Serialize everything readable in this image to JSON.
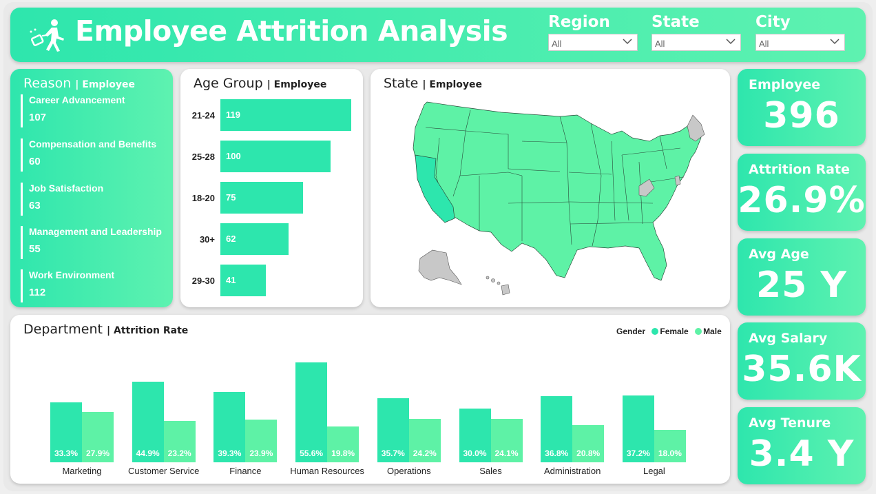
{
  "header": {
    "title": "Employee Attrition Analysis",
    "filters": [
      {
        "label": "Region",
        "value": "All"
      },
      {
        "label": "State",
        "value": "All"
      },
      {
        "label": "City",
        "value": "All"
      }
    ]
  },
  "reason": {
    "title": "Reason",
    "subtitle": "| Employee",
    "items": [
      {
        "label": "Career Advancement",
        "value": "107"
      },
      {
        "label": "Compensation and Benefits",
        "value": "60"
      },
      {
        "label": "Job Satisfaction",
        "value": "63"
      },
      {
        "label": "Management and Leadership",
        "value": "55"
      },
      {
        "label": "Work Environment",
        "value": "112"
      }
    ]
  },
  "state_map": {
    "title": "State",
    "subtitle": "| Employee"
  },
  "kpis": [
    {
      "label": "Employee",
      "value": "396"
    },
    {
      "label": "Attrition Rate",
      "value": "26.9%"
    },
    {
      "label": "Avg Age",
      "value": "25 Y"
    },
    {
      "label": "Avg Salary",
      "value": "35.6K"
    },
    {
      "label": "Avg Tenure",
      "value": "3.4 Y"
    }
  ],
  "colors": {
    "female": "#2de6ad",
    "male": "#5ef2a6",
    "accent": "#2ee6ad"
  },
  "chart_data": [
    {
      "type": "bar",
      "orientation": "horizontal",
      "title": "Age Group",
      "subtitle": "| Employee",
      "categories": [
        "21-24",
        "25-28",
        "18-20",
        "30+",
        "29-30"
      ],
      "values": [
        119,
        100,
        75,
        62,
        41
      ],
      "xlim": [
        0,
        125
      ]
    },
    {
      "type": "bar",
      "title": "Department",
      "subtitle": "| Attrition Rate",
      "legend_title": "Gender",
      "categories": [
        "Marketing",
        "Customer Service",
        "Finance",
        "Human Resources",
        "Operations",
        "Sales",
        "Administration",
        "Legal"
      ],
      "series": [
        {
          "name": "Female",
          "values": [
            33.3,
            44.9,
            39.3,
            55.6,
            35.7,
            30.0,
            36.8,
            37.2
          ],
          "labels": [
            "33.3%",
            "44.9%",
            "39.3%",
            "55.6%",
            "35.7%",
            "30.0%",
            "36.8%",
            "37.2%"
          ]
        },
        {
          "name": "Male",
          "values": [
            27.9,
            23.2,
            23.9,
            19.8,
            24.2,
            24.1,
            20.8,
            18.0
          ],
          "labels": [
            "27.9%",
            "23.2%",
            "23.9%",
            "19.8%",
            "24.2%",
            "24.1%",
            "20.8%",
            "18.0%"
          ]
        }
      ],
      "ylim": [
        0,
        56
      ]
    }
  ]
}
